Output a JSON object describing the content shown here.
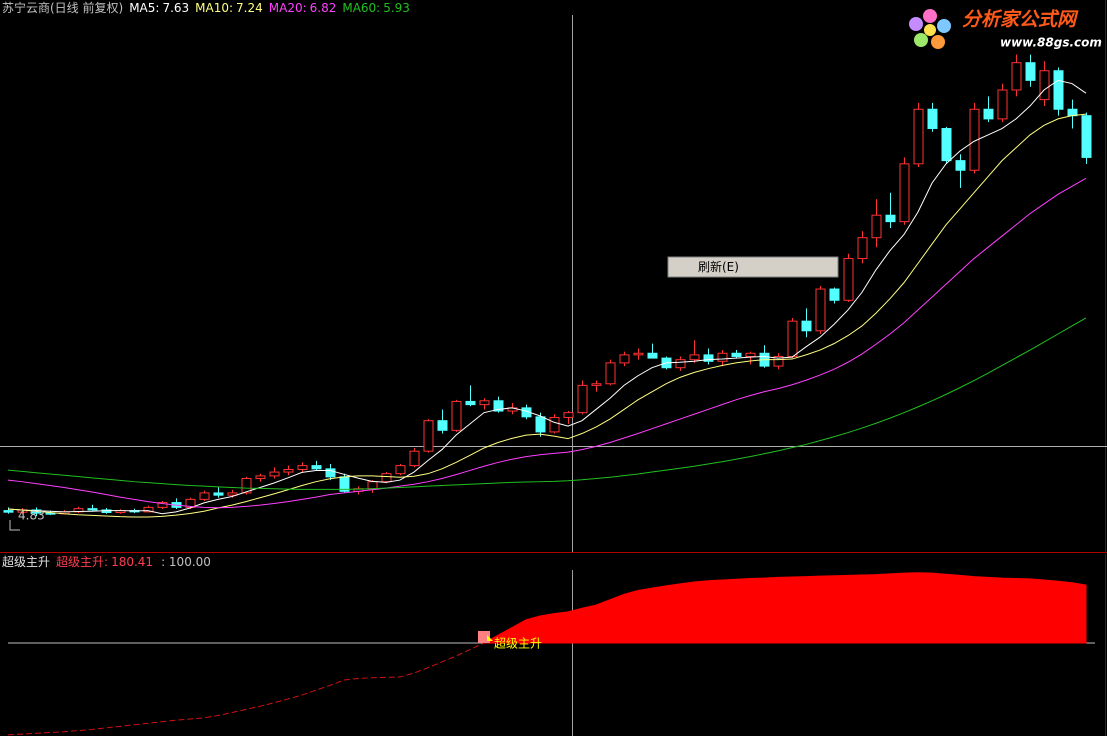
{
  "chart_data": [
    {
      "type": "candlestick",
      "title": "苏宁云商(日线 前复权)",
      "ylim": [
        3.71,
        20.28
      ],
      "low_marker": 4.83,
      "ohlc": [
        [
          5.0,
          5.1,
          4.9,
          4.95
        ],
        [
          4.95,
          5.08,
          4.9,
          5.02
        ],
        [
          5.02,
          5.1,
          4.83,
          4.92
        ],
        [
          4.92,
          5.0,
          4.86,
          4.9
        ],
        [
          4.9,
          5.02,
          4.88,
          4.96
        ],
        [
          4.96,
          5.12,
          4.92,
          5.06
        ],
        [
          5.06,
          5.18,
          5.0,
          5.02
        ],
        [
          5.02,
          5.08,
          4.9,
          4.94
        ],
        [
          4.94,
          5.04,
          4.9,
          5.0
        ],
        [
          5.0,
          5.06,
          4.92,
          4.96
        ],
        [
          4.96,
          5.15,
          4.94,
          5.1
        ],
        [
          5.1,
          5.3,
          5.05,
          5.25
        ],
        [
          5.25,
          5.38,
          5.05,
          5.1
        ],
        [
          5.1,
          5.4,
          5.05,
          5.35
        ],
        [
          5.35,
          5.62,
          5.3,
          5.55
        ],
        [
          5.55,
          5.75,
          5.4,
          5.48
        ],
        [
          5.48,
          5.65,
          5.4,
          5.55
        ],
        [
          5.55,
          6.05,
          5.5,
          6.0
        ],
        [
          6.0,
          6.15,
          5.9,
          6.08
        ],
        [
          6.08,
          6.35,
          6.0,
          6.2
        ],
        [
          6.2,
          6.4,
          6.1,
          6.28
        ],
        [
          6.28,
          6.5,
          6.2,
          6.4
        ],
        [
          6.4,
          6.55,
          6.25,
          6.3
        ],
        [
          6.3,
          6.45,
          5.95,
          6.05
        ],
        [
          6.05,
          6.15,
          5.55,
          5.6
        ],
        [
          5.6,
          5.75,
          5.5,
          5.68
        ],
        [
          5.68,
          5.95,
          5.55,
          5.9
        ],
        [
          5.9,
          6.2,
          5.85,
          6.15
        ],
        [
          6.15,
          6.45,
          6.1,
          6.4
        ],
        [
          6.4,
          6.95,
          6.35,
          6.85
        ],
        [
          6.85,
          7.85,
          6.8,
          7.8
        ],
        [
          7.8,
          8.15,
          7.4,
          7.5
        ],
        [
          7.5,
          8.45,
          7.45,
          8.4
        ],
        [
          8.4,
          8.9,
          8.25,
          8.3
        ],
        [
          8.3,
          8.5,
          8.15,
          8.42
        ],
        [
          8.42,
          8.55,
          8.05,
          8.1
        ],
        [
          8.1,
          8.35,
          8.0,
          8.2
        ],
        [
          8.2,
          8.3,
          7.85,
          7.92
        ],
        [
          7.92,
          8.05,
          7.3,
          7.45
        ],
        [
          7.45,
          8.0,
          7.4,
          7.9
        ],
        [
          7.9,
          8.1,
          7.7,
          8.05
        ],
        [
          8.05,
          9.05,
          8.0,
          8.9
        ],
        [
          8.9,
          9.05,
          8.7,
          8.95
        ],
        [
          8.95,
          9.7,
          8.9,
          9.6
        ],
        [
          9.6,
          9.95,
          9.5,
          9.85
        ],
        [
          9.85,
          10.05,
          9.7,
          9.9
        ],
        [
          9.9,
          10.2,
          9.75,
          9.75
        ],
        [
          9.75,
          9.8,
          9.4,
          9.45
        ],
        [
          9.45,
          9.8,
          9.35,
          9.7
        ],
        [
          9.7,
          10.3,
          9.6,
          9.85
        ],
        [
          9.85,
          10.05,
          9.55,
          9.65
        ],
        [
          9.65,
          10.0,
          9.5,
          9.9
        ],
        [
          9.9,
          10.0,
          9.75,
          9.8
        ],
        [
          9.8,
          9.95,
          9.55,
          9.9
        ],
        [
          9.9,
          10.15,
          9.45,
          9.5
        ],
        [
          9.5,
          9.9,
          9.4,
          9.8
        ],
        [
          9.8,
          11.0,
          9.75,
          10.9
        ],
        [
          10.9,
          11.3,
          10.4,
          10.6
        ],
        [
          10.6,
          12.0,
          10.5,
          11.9
        ],
        [
          11.9,
          11.95,
          11.45,
          11.55
        ],
        [
          11.55,
          13.0,
          11.5,
          12.85
        ],
        [
          12.85,
          13.7,
          12.7,
          13.5
        ],
        [
          13.5,
          14.7,
          13.2,
          14.2
        ],
        [
          14.2,
          14.9,
          13.8,
          14.0
        ],
        [
          14.0,
          16.0,
          13.9,
          15.8
        ],
        [
          15.8,
          17.7,
          15.7,
          17.5
        ],
        [
          17.5,
          17.7,
          16.8,
          16.9
        ],
        [
          16.9,
          16.95,
          15.8,
          15.9
        ],
        [
          15.9,
          16.1,
          15.05,
          15.6
        ],
        [
          15.6,
          17.7,
          15.5,
          17.5
        ],
        [
          17.5,
          17.9,
          17.1,
          17.2
        ],
        [
          17.2,
          18.3,
          17.1,
          18.1
        ],
        [
          18.1,
          19.2,
          17.9,
          18.95
        ],
        [
          18.95,
          19.2,
          18.2,
          18.4
        ],
        [
          17.8,
          19.0,
          17.6,
          18.7
        ],
        [
          18.7,
          18.8,
          17.3,
          17.5
        ],
        [
          17.5,
          17.8,
          16.9,
          17.3
        ],
        [
          17.3,
          17.4,
          15.8,
          16.0
        ]
      ],
      "up_color": "#ff3232",
      "down_color": "#54ffff",
      "series": [
        {
          "name": "MA5:",
          "color": "#ffffff",
          "cursor_value": 7.63,
          "values": [
            5.05,
            5.02,
            5.0,
            4.98,
            4.96,
            4.97,
            4.98,
            5.0,
            5.0,
            4.99,
            5.0,
            4.9,
            4.96,
            5.08,
            5.24,
            5.35,
            5.44,
            5.58,
            5.72,
            5.86,
            6.02,
            6.19,
            6.25,
            6.25,
            6.13,
            6.01,
            5.91,
            5.88,
            5.95,
            6.2,
            6.56,
            6.9,
            7.35,
            7.7,
            8.05,
            8.15,
            8.2,
            8.1,
            7.95,
            7.75,
            7.63,
            7.8,
            8.15,
            8.5,
            8.9,
            9.2,
            9.45,
            9.6,
            9.62,
            9.65,
            9.7,
            9.72,
            9.75,
            9.78,
            9.8,
            9.75,
            9.78,
            10.1,
            10.4,
            10.8,
            11.25,
            11.8,
            12.5,
            13.1,
            13.6,
            14.3,
            15.2,
            15.8,
            16.2,
            16.5,
            16.7,
            16.9,
            17.2,
            17.6,
            18.1,
            18.4,
            18.3,
            18.0
          ]
        },
        {
          "name": "MA10:",
          "color": "#ffff80",
          "cursor_value": 7.24,
          "values": [
            5.05,
            5.02,
            4.98,
            4.94,
            4.9,
            4.87,
            4.85,
            4.83,
            4.81,
            4.8,
            4.8,
            4.82,
            4.86,
            4.91,
            4.98,
            5.08,
            5.17,
            5.28,
            5.4,
            5.52,
            5.65,
            5.78,
            5.9,
            5.99,
            6.05,
            6.08,
            6.08,
            6.06,
            6.04,
            6.07,
            6.15,
            6.3,
            6.5,
            6.72,
            6.95,
            7.12,
            7.25,
            7.35,
            7.38,
            7.32,
            7.24,
            7.4,
            7.6,
            7.85,
            8.15,
            8.45,
            8.7,
            8.95,
            9.15,
            9.3,
            9.42,
            9.52,
            9.6,
            9.66,
            9.7,
            9.7,
            9.72,
            9.85,
            10.0,
            10.2,
            10.45,
            10.75,
            11.15,
            11.6,
            12.1,
            12.7,
            13.3,
            13.9,
            14.4,
            14.9,
            15.4,
            15.9,
            16.3,
            16.7,
            17.0,
            17.2,
            17.3,
            17.35
          ]
        },
        {
          "name": "MA20:",
          "color": "#ff40ff",
          "cursor_value": 6.82,
          "values": [
            5.95,
            5.9,
            5.84,
            5.78,
            5.72,
            5.65,
            5.58,
            5.5,
            5.42,
            5.35,
            5.28,
            5.22,
            5.17,
            5.13,
            5.1,
            5.09,
            5.1,
            5.13,
            5.17,
            5.22,
            5.28,
            5.35,
            5.42,
            5.5,
            5.55,
            5.6,
            5.65,
            5.7,
            5.76,
            5.82,
            5.9,
            6.0,
            6.12,
            6.25,
            6.38,
            6.5,
            6.6,
            6.68,
            6.74,
            6.78,
            6.82,
            6.9,
            7.0,
            7.12,
            7.26,
            7.4,
            7.55,
            7.7,
            7.85,
            8.0,
            8.15,
            8.3,
            8.45,
            8.58,
            8.7,
            8.8,
            8.92,
            9.06,
            9.22,
            9.4,
            9.62,
            9.88,
            10.18,
            10.5,
            10.85,
            11.25,
            11.65,
            12.05,
            12.45,
            12.85,
            13.2,
            13.55,
            13.9,
            14.25,
            14.55,
            14.85,
            15.1,
            15.35
          ]
        },
        {
          "name": "MA60:",
          "color": "#20c020",
          "cursor_value": 5.93,
          "values": [
            6.26,
            6.22,
            6.18,
            6.14,
            6.1,
            6.06,
            6.02,
            5.98,
            5.94,
            5.9,
            5.87,
            5.84,
            5.81,
            5.78,
            5.76,
            5.74,
            5.72,
            5.7,
            5.69,
            5.68,
            5.67,
            5.66,
            5.66,
            5.66,
            5.66,
            5.67,
            5.68,
            5.7,
            5.72,
            5.74,
            5.76,
            5.78,
            5.8,
            5.82,
            5.84,
            5.86,
            5.88,
            5.89,
            5.9,
            5.91,
            5.93,
            5.96,
            6.0,
            6.04,
            6.09,
            6.14,
            6.2,
            6.26,
            6.32,
            6.38,
            6.45,
            6.52,
            6.6,
            6.68,
            6.77,
            6.86,
            6.96,
            7.06,
            7.18,
            7.3,
            7.43,
            7.57,
            7.72,
            7.88,
            8.05,
            8.23,
            8.42,
            8.62,
            8.83,
            9.05,
            9.28,
            9.52,
            9.76,
            10.0,
            10.25,
            10.5,
            10.75,
            11.0
          ]
        }
      ]
    },
    {
      "type": "area",
      "title": "超级主升",
      "ylim": [
        -141,
        289
      ],
      "reference": {
        "value": 100,
        "label": ": 100.00"
      },
      "signal_label": "超级主升",
      "series": [
        {
          "name": "超级主升:",
          "color": "#ff0000",
          "cursor_value": 180.41,
          "values": [
            -138,
            -136,
            -134,
            -132,
            -130,
            -127,
            -124,
            -120,
            -116,
            -112,
            -108,
            -104,
            -100,
            -97,
            -94,
            -88,
            -80,
            -72,
            -64,
            -55,
            -45,
            -35,
            -22,
            -10,
            4,
            8,
            10,
            11,
            12,
            22,
            36,
            51,
            66,
            83,
            100,
            120,
            140,
            160,
            170,
            176,
            180.41,
            190,
            198,
            212,
            226,
            236,
            242,
            248,
            253,
            258,
            261,
            263,
            265,
            267,
            268,
            270,
            271,
            272,
            273,
            274,
            275,
            276,
            277,
            279,
            281,
            282,
            281,
            278,
            275,
            272,
            270,
            268,
            267,
            266,
            263,
            260,
            256,
            250
          ]
        }
      ]
    }
  ],
  "ui": {
    "logo_title": "分析家公式网",
    "logo_url": "www.88gs.com",
    "menu_item": "刷新(E)"
  }
}
